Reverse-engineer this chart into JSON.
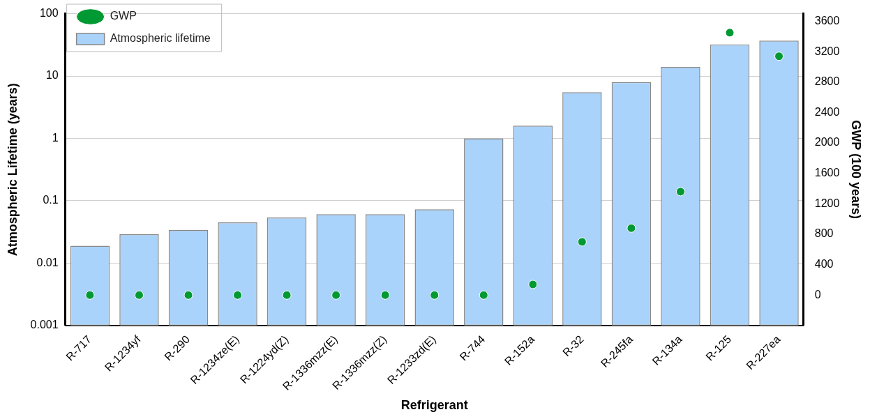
{
  "chart_data": {
    "type": "bar",
    "xlabel": "Refrigerant",
    "ylabel": "Atmospheric Lifetime (years)",
    "y2label": "GWP (100 years)",
    "categories": [
      "R-717",
      "R-1234yf",
      "R-290",
      "R-1234ze(E)",
      "R-1224yd(Z)",
      "R-1336mzz(E)",
      "R-1336mzz(Z)",
      "R-1233zd(E)",
      "R-744",
      "R-152a",
      "R-32",
      "R-245fa",
      "R-134a",
      "R-125",
      "R-227ea"
    ],
    "series": [
      {
        "name": "Atmospheric lifetime",
        "color": "#aad3fb",
        "values": [
          0.019,
          0.029,
          0.034,
          0.045,
          0.054,
          0.061,
          0.061,
          0.073,
          1,
          1.6,
          5.5,
          8,
          14,
          32,
          37
        ]
      },
      {
        "name": "GWP",
        "type": "scatter",
        "axis": "y2",
        "color": "#009933",
        "values": [
          0,
          0,
          0,
          0,
          0,
          0,
          0,
          0,
          0,
          140,
          700,
          880,
          1360,
          3450,
          3140
        ]
      }
    ],
    "log": "y",
    "ylim": [
      0.001,
      100
    ],
    "yticks": [
      0.001,
      0.01,
      0.1,
      1,
      10,
      100
    ],
    "y2lim": [
      -400,
      3700
    ],
    "y2ticks": [
      0,
      400,
      800,
      1200,
      1600,
      2000,
      2400,
      2800,
      3200,
      3600
    ],
    "grid": "y",
    "legend": "top left",
    "marker": "circle"
  }
}
